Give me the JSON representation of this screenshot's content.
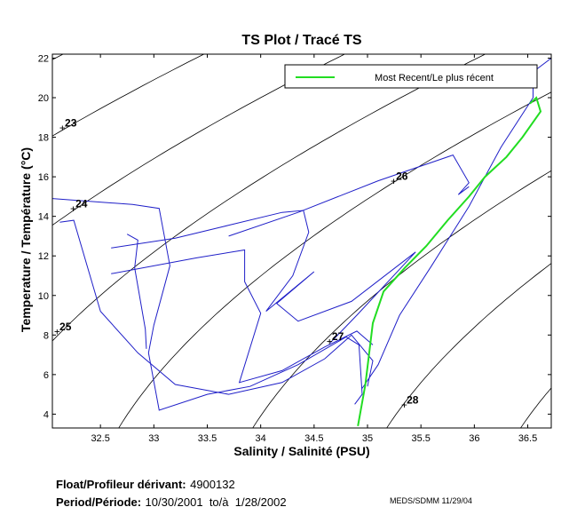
{
  "chart_data": {
    "type": "line",
    "title": "TS Plot / Tracé TS",
    "xlabel": "Salinity / Salinité (PSU)",
    "ylabel": "Temperature / Température (°C)",
    "xlim": [
      32.05,
      36.72
    ],
    "ylim": [
      3.3,
      22.2
    ],
    "xticks": [
      "32.5",
      "33",
      "33.5",
      "34",
      "34.5",
      "35",
      "35.5",
      "36",
      "36.5"
    ],
    "yticks": [
      "4",
      "6",
      "8",
      "10",
      "12",
      "14",
      "16",
      "18",
      "20",
      "22"
    ],
    "legend": {
      "position": "top-right",
      "entries": [
        "Most Recent/Le plus récent"
      ]
    },
    "density_isopleths": [
      {
        "label": "23",
        "label_at": [
          32.15,
          18.5
        ]
      },
      {
        "label": "24",
        "label_at": [
          32.25,
          14.4
        ]
      },
      {
        "label": "25",
        "label_at": [
          32.1,
          8.2
        ]
      },
      {
        "label": "26",
        "label_at": [
          35.25,
          15.8
        ]
      },
      {
        "label": "27",
        "label_at": [
          34.65,
          7.7
        ]
      },
      {
        "label": "28",
        "label_at": [
          35.35,
          4.5
        ]
      }
    ],
    "series": [
      {
        "name": "",
        "color": "#1f1fc8",
        "points": [
          [
            32.05,
            14.9
          ],
          [
            32.8,
            14.6
          ],
          [
            33.05,
            14.4
          ],
          [
            33.15,
            11.5
          ],
          [
            33.0,
            8.5
          ],
          [
            32.95,
            7.1
          ],
          [
            33.05,
            4.2
          ],
          [
            33.5,
            5.0
          ],
          [
            33.9,
            5.4
          ],
          [
            34.35,
            6.5
          ],
          [
            34.8,
            7.9
          ],
          [
            34.92,
            7.5
          ],
          [
            34.95,
            5.0
          ],
          [
            34.88,
            4.5
          ]
        ]
      },
      {
        "name": "",
        "color": "#1f1fc8",
        "points": [
          [
            32.12,
            13.7
          ],
          [
            32.25,
            13.8
          ],
          [
            32.5,
            9.2
          ],
          [
            32.85,
            7.1
          ],
          [
            33.2,
            5.5
          ],
          [
            33.7,
            5.0
          ],
          [
            34.2,
            5.6
          ],
          [
            34.6,
            6.8
          ],
          [
            34.85,
            8.0
          ],
          [
            35.05,
            6.7
          ],
          [
            35.0,
            5.4
          ]
        ]
      },
      {
        "name": "",
        "color": "#1f1fc8",
        "points": [
          [
            32.6,
            12.4
          ],
          [
            33.2,
            12.9
          ],
          [
            34.2,
            14.2
          ],
          [
            34.4,
            14.3
          ],
          [
            34.45,
            13.2
          ],
          [
            34.3,
            11.0
          ],
          [
            34.05,
            9.2
          ],
          [
            34.5,
            11.2
          ],
          [
            34.15,
            9.6
          ],
          [
            34.35,
            8.7
          ],
          [
            34.85,
            9.7
          ],
          [
            35.45,
            12.2
          ],
          [
            34.9,
            9.0
          ],
          [
            34.65,
            7.6
          ]
        ]
      },
      {
        "name": "",
        "color": "#1f1fc8",
        "points": [
          [
            32.6,
            11.1
          ],
          [
            33.4,
            11.9
          ],
          [
            33.85,
            12.3
          ],
          [
            33.85,
            10.7
          ],
          [
            34.0,
            9.1
          ],
          [
            33.8,
            5.6
          ],
          [
            34.2,
            6.2
          ],
          [
            34.6,
            7.4
          ],
          [
            34.9,
            8.2
          ],
          [
            35.05,
            7.5
          ]
        ]
      },
      {
        "name": "",
        "color": "#1f1fc8",
        "points": [
          [
            32.75,
            13.1
          ],
          [
            32.85,
            12.8
          ],
          [
            32.82,
            11.4
          ],
          [
            32.92,
            8.3
          ],
          [
            32.93,
            7.3
          ]
        ]
      },
      {
        "name": "",
        "color": "#1f1fc8",
        "points": [
          [
            33.7,
            13.0
          ],
          [
            34.35,
            14.2
          ],
          [
            35.1,
            15.8
          ],
          [
            35.8,
            17.1
          ],
          [
            35.95,
            15.7
          ],
          [
            35.85,
            15.1
          ],
          [
            35.95,
            15.5
          ]
        ]
      },
      {
        "name": "",
        "color": "#1f1fc8",
        "points": [
          [
            34.95,
            5.3
          ],
          [
            35.1,
            6.5
          ],
          [
            35.3,
            9.0
          ],
          [
            35.6,
            11.5
          ],
          [
            35.95,
            14.5
          ],
          [
            36.25,
            17.5
          ],
          [
            36.55,
            20.0
          ],
          [
            36.55,
            21.3
          ],
          [
            36.72,
            22.0
          ]
        ]
      },
      {
        "name": "Most Recent/Le plus récent",
        "color": "#22dd22",
        "points": [
          [
            34.91,
            3.4
          ],
          [
            34.98,
            5.5
          ],
          [
            35.05,
            8.6
          ],
          [
            35.15,
            10.2
          ],
          [
            35.35,
            11.4
          ],
          [
            35.55,
            12.5
          ],
          [
            35.75,
            13.8
          ],
          [
            35.95,
            15.0
          ],
          [
            36.1,
            16.0
          ],
          [
            36.3,
            17.0
          ],
          [
            36.45,
            18.0
          ],
          [
            36.62,
            19.3
          ],
          [
            36.58,
            20.0
          ],
          [
            36.52,
            19.7
          ]
        ]
      }
    ]
  },
  "footer": {
    "float_label": "Float/Profileur dérivant:",
    "float_id": "4900132",
    "period_label": "Period/Période:",
    "period_value": "10/30/2001  to/à  1/28/2002",
    "credit": "MEDS/SDMM  11/29/04"
  }
}
